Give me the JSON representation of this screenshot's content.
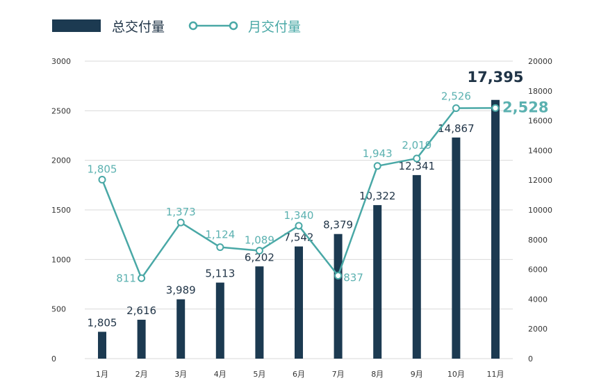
{
  "colors": {
    "bar": "#1c3a51",
    "line": "#49a8a6",
    "grid": "#dadada",
    "tick_text": "#333333"
  },
  "legend": [
    {
      "label": "总交付量",
      "marker": "bar",
      "color": "#1c3a51"
    },
    {
      "label": "月交付量",
      "marker": "line-circle",
      "color": "#49a8a6"
    }
  ],
  "chart_data": {
    "type": "bar",
    "categories": [
      "1月",
      "2月",
      "3月",
      "4月",
      "5月",
      "6月",
      "7月",
      "8月",
      "9月",
      "10月",
      "11月"
    ],
    "series": [
      {
        "name": "总交付量",
        "type": "bar",
        "axis": "right",
        "values": [
          1805,
          2616,
          3989,
          5113,
          6202,
          7542,
          8379,
          10322,
          12341,
          14867,
          17395
        ],
        "labels": [
          "1,805",
          "2,616",
          "3,989",
          "5,113",
          "6,202",
          "7,542",
          "8,379",
          "10,322",
          "12,341",
          "14,867",
          "17,395"
        ]
      },
      {
        "name": "月交付量",
        "type": "line",
        "axis": "left",
        "values": [
          1805,
          811,
          1373,
          1124,
          1089,
          1340,
          837,
          1943,
          2019,
          2526,
          2528
        ],
        "labels": [
          "1,805",
          "811",
          "1,373",
          "1,124",
          "1,089",
          "1,340",
          "837",
          "1,943",
          "2,019",
          "2,526",
          "2,528"
        ]
      }
    ],
    "y_left": {
      "lim": [
        0,
        3000
      ],
      "ticks": [
        "0",
        "500",
        "1000",
        "1500",
        "2000",
        "2500",
        "3000"
      ]
    },
    "y_right": {
      "lim": [
        0,
        20000
      ],
      "ticks": [
        "0",
        "2000",
        "4000",
        "6000",
        "8000",
        "10000",
        "12000",
        "14000",
        "16000",
        "18000",
        "20000"
      ]
    },
    "grid": true,
    "legend_position": "top-left"
  }
}
